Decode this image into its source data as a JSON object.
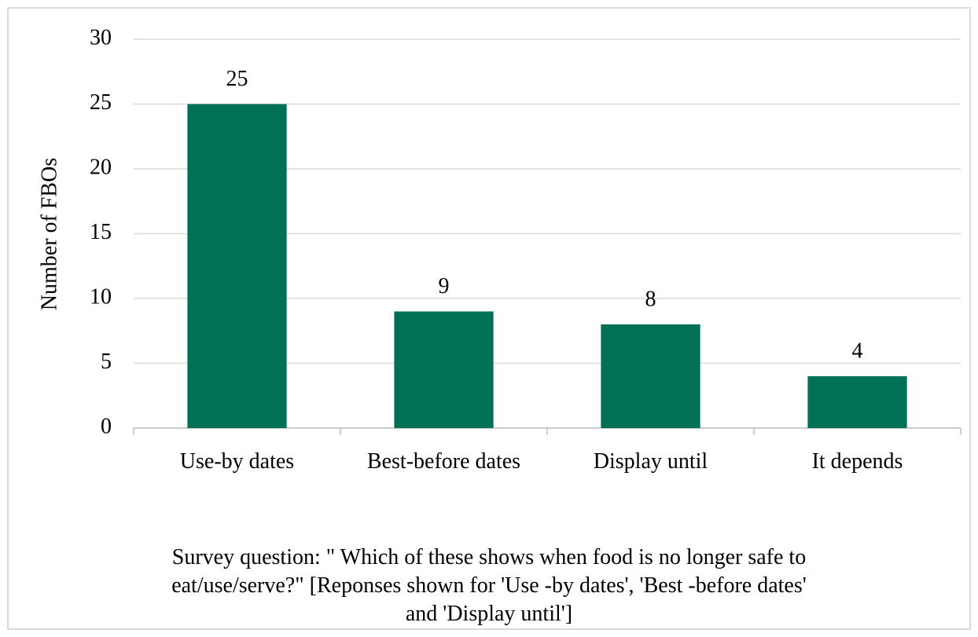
{
  "chart_data": {
    "type": "bar",
    "x_label": "Survey question: \" Which of these shows when food is no longer safe to eat/use/serve?\" [Reponses shown for 'Use -by dates', 'Best -before dates' and 'Display until']",
    "y_label": "Number of FBOs",
    "categories": [
      "Use-by dates",
      "Best-before dates",
      "Display until",
      "It depends"
    ],
    "values": [
      25,
      9,
      8,
      4
    ],
    "color": "#007155",
    "ylim": [
      0,
      30
    ],
    "yticks": [
      0,
      5,
      10,
      15,
      20,
      25,
      30
    ],
    "grid": true
  }
}
